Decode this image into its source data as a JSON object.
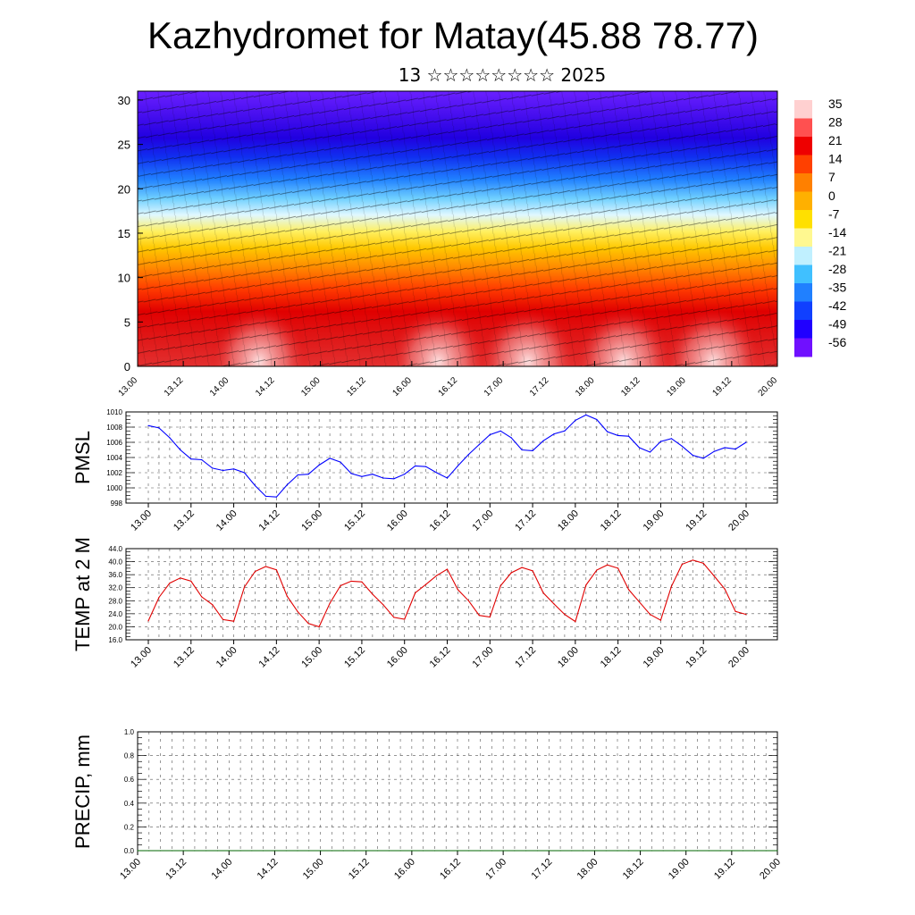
{
  "title": "Kazhydromet for Matay(45.88 78.77)",
  "subtitle": "13 ☆☆☆☆☆☆☆☆ 2025",
  "colors": {
    "pmsl_line": "#0000ff",
    "temp_line": "#e00000",
    "precip_line": "#006400",
    "grid": "#666666"
  },
  "chart_data": [
    {
      "id": "cross-section",
      "type": "heatmap",
      "title": "",
      "xlabel": "",
      "ylabel": "",
      "x_tick_labels": [
        "13.00",
        "13.12",
        "14.00",
        "14.12",
        "15.00",
        "15.12",
        "16.00",
        "16.12",
        "17.00",
        "17.12",
        "18.00",
        "18.12",
        "19.00",
        "19.12",
        "20.00"
      ],
      "y_ticks": [
        0,
        5,
        10,
        15,
        20,
        25,
        30
      ],
      "ylim": [
        0,
        31
      ],
      "colorbar_labels": [
        "35",
        "28",
        "21",
        "14",
        "7",
        "0",
        "-7",
        "-14",
        "-21",
        "-28",
        "-35",
        "-42",
        "-49",
        "-56"
      ],
      "colorbar_colors": [
        "#ffd0d0",
        "#ff5050",
        "#ee0000",
        "#ff4000",
        "#ff8000",
        "#ffb000",
        "#ffe000",
        "#fff890",
        "#c0f0ff",
        "#40c0ff",
        "#2080ff",
        "#1040ff",
        "#2000ff",
        "#7010ff"
      ],
      "overlay": "wind vectors"
    },
    {
      "id": "pmsl",
      "type": "line",
      "ylabel": "PMSL",
      "ylim": [
        998,
        1010
      ],
      "y_ticks": [
        998,
        1000,
        1002,
        1004,
        1006,
        1008,
        1010
      ],
      "x_tick_labels": [
        "13.00",
        "13.12",
        "14.00",
        "14.12",
        "15.00",
        "15.12",
        "16.00",
        "16.12",
        "17.00",
        "17.12",
        "18.00",
        "18.12",
        "19.00",
        "19.12",
        "20.00"
      ],
      "series": [
        {
          "values": [
            1008.2,
            1007.9,
            1006.6,
            1005.0,
            1003.8,
            1003.7,
            1002.6,
            1002.3,
            1002.5,
            1002.0,
            1000.3,
            998.9,
            998.8,
            1000.4,
            1001.7,
            1001.8,
            1003.0,
            1003.9,
            1003.4,
            1001.9,
            1001.5,
            1001.8,
            1001.3,
            1001.2,
            1001.8,
            1002.9,
            1002.8,
            1002.0,
            1001.3,
            1002.9,
            1004.4,
            1005.7,
            1007.0,
            1007.5,
            1006.6,
            1005.0,
            1004.9,
            1006.2,
            1007.1,
            1007.5,
            1008.9,
            1009.6,
            1009.0,
            1007.4,
            1006.9,
            1006.8,
            1005.3,
            1004.7,
            1006.1,
            1006.5,
            1005.5,
            1004.3,
            1003.9,
            1004.8,
            1005.3,
            1005.1,
            1006.0
          ]
        }
      ]
    },
    {
      "id": "temp",
      "type": "line",
      "ylabel": "TEMP at 2 M",
      "ylim": [
        16,
        44
      ],
      "y_ticks": [
        "16.0",
        "20.0",
        "24.0",
        "28.0",
        "32.0",
        "36.0",
        "40.0",
        "44.0"
      ],
      "x_tick_labels": [
        "13.00",
        "13.12",
        "14.00",
        "14.12",
        "15.00",
        "15.12",
        "16.00",
        "16.12",
        "17.00",
        "17.12",
        "18.00",
        "18.12",
        "19.00",
        "19.12",
        "20.00"
      ],
      "series": [
        {
          "values": [
            21.8,
            29.0,
            33.4,
            35.0,
            34.0,
            29.2,
            26.8,
            22.2,
            21.7,
            32.2,
            37.0,
            38.5,
            37.5,
            29.4,
            24.6,
            21.0,
            20.0,
            27.2,
            32.6,
            34.0,
            33.8,
            30.0,
            26.8,
            22.9,
            22.3,
            30.4,
            33.0,
            35.7,
            37.7,
            31.4,
            28.0,
            23.5,
            23.0,
            32.6,
            36.6,
            38.2,
            37.2,
            30.4,
            27.0,
            23.8,
            21.6,
            32.8,
            37.4,
            39.0,
            38.0,
            31.4,
            27.6,
            23.8,
            22.0,
            32.4,
            39.2,
            40.5,
            39.5,
            35.6,
            31.6,
            24.7,
            23.8
          ]
        }
      ]
    },
    {
      "id": "precip",
      "type": "line",
      "ylabel": "PRECIP, mm",
      "ylim": [
        0,
        1
      ],
      "y_ticks": [
        "0.0",
        "0.2",
        "0.4",
        "0.6",
        "0.8",
        "1.0"
      ],
      "x_tick_labels": [
        "13.00",
        "13.12",
        "14.00",
        "14.12",
        "15.00",
        "15.12",
        "16.00",
        "16.12",
        "17.00",
        "17.12",
        "18.00",
        "18.12",
        "19.00",
        "19.12",
        "20.00"
      ],
      "series": [
        {
          "values": [
            0,
            0,
            0,
            0,
            0,
            0,
            0,
            0,
            0,
            0,
            0,
            0,
            0,
            0,
            0,
            0,
            0,
            0,
            0,
            0,
            0,
            0,
            0,
            0,
            0,
            0,
            0,
            0,
            0,
            0,
            0,
            0,
            0,
            0,
            0,
            0,
            0,
            0,
            0,
            0,
            0,
            0,
            0,
            0,
            0,
            0,
            0,
            0,
            0,
            0,
            0,
            0,
            0,
            0,
            0,
            0,
            0
          ]
        }
      ]
    }
  ]
}
